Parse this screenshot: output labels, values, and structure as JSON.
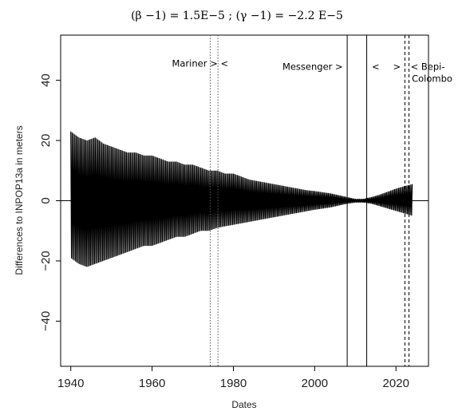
{
  "chart_data": {
    "type": "line",
    "title": "(β −1) = 1.5E−5 ; (γ −1) = −2.2 E−5",
    "xlabel": "Dates",
    "ylabel": "Differences to INPOP13a in meters",
    "xlim": [
      1937.5,
      2028
    ],
    "ylim": [
      -55,
      55
    ],
    "x_ticks": [
      1940,
      1960,
      1980,
      2000,
      2020
    ],
    "y_ticks": [
      -40,
      -20,
      0,
      20,
      40
    ],
    "grid": false,
    "series": [
      {
        "style": "oscillation",
        "color": "#000000",
        "x": [
          1940,
          1942,
          1944,
          1946,
          1948,
          1950,
          1952,
          1954,
          1956,
          1958,
          1960,
          1962,
          1964,
          1966,
          1968,
          1970,
          1972,
          1974,
          1976,
          1978,
          1980,
          1982,
          1984,
          1986,
          1988,
          1990,
          1992,
          1994,
          1996,
          1998,
          2000,
          2002,
          2004,
          2006,
          2008,
          2010,
          2012,
          2014,
          2016,
          2018,
          2020,
          2022,
          2024
        ],
        "upper": [
          23,
          21,
          20,
          21,
          19,
          18,
          17,
          16,
          16,
          15,
          15,
          14,
          13,
          13,
          12,
          12,
          11,
          10,
          10,
          9,
          9,
          8,
          7,
          6.5,
          6,
          5.5,
          5,
          4.5,
          4,
          3.5,
          3.2,
          2.8,
          2.4,
          1.8,
          1.2,
          0.6,
          0.6,
          1.2,
          2,
          3,
          4,
          4.8,
          5.5
        ],
        "lower": [
          -19,
          -21,
          -22,
          -21,
          -20,
          -19,
          -18,
          -17,
          -16,
          -15,
          -15,
          -14,
          -13,
          -12,
          -12,
          -11,
          -10,
          -10,
          -9,
          -8.5,
          -8,
          -7.5,
          -7,
          -6.5,
          -6,
          -5.5,
          -5,
          -4.5,
          -4,
          -3.5,
          -3,
          -2.6,
          -2.2,
          -1.6,
          -1,
          -0.6,
          -0.6,
          -1,
          -1.8,
          -2.6,
          -3.4,
          -4.2,
          -5
        ]
      }
    ],
    "vertical_lines": [
      {
        "x": 1974.3,
        "style": "dotted"
      },
      {
        "x": 1976.2,
        "style": "dotted"
      },
      {
        "x": 2008,
        "style": "solid"
      },
      {
        "x": 2012.8,
        "style": "solid"
      },
      {
        "x": 2022.2,
        "style": "dashed"
      },
      {
        "x": 2023.2,
        "style": "dashed"
      }
    ],
    "annotations": [
      {
        "text": "Mariner >",
        "x": 1970.5,
        "y": 44.5,
        "anchor": "middle"
      },
      {
        "text": "<",
        "x": 1977.8,
        "y": 44.5,
        "anchor": "middle"
      },
      {
        "text": "Messenger >",
        "x": 1999.5,
        "y": 43.5,
        "anchor": "middle"
      },
      {
        "text": "<",
        "x": 2015,
        "y": 43.5,
        "anchor": "middle"
      },
      {
        "text": ">",
        "x": 2020.2,
        "y": 43.5,
        "anchor": "middle"
      },
      {
        "text": "< Bepi-",
        "x": 2023.6,
        "y": 43.5,
        "anchor": "start"
      },
      {
        "text": "Colombo",
        "x": 2023.9,
        "y": 39.5,
        "anchor": "start"
      }
    ]
  }
}
